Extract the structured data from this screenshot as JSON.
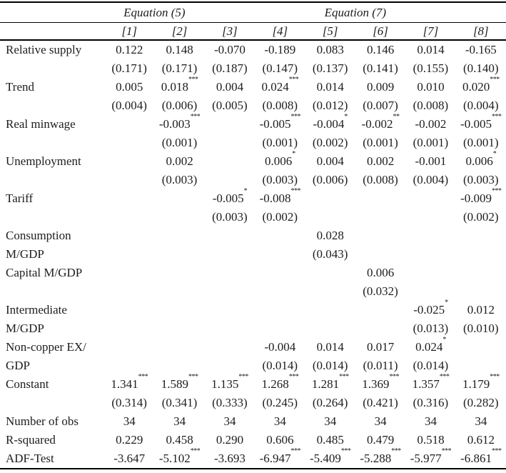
{
  "colors": {
    "text": "#1d1d1d",
    "rule": "#000000",
    "background": "#ffffff"
  },
  "table": {
    "header": {
      "groups": [
        {
          "label": "Equation (5)"
        },
        {
          "label": "Equation (7)"
        }
      ],
      "columns": [
        "[1]",
        "[2]",
        "[3]",
        "[4]",
        "[5]",
        "[6]",
        "[7]",
        "[8]"
      ]
    },
    "rows": [
      {
        "label": [
          "Relative supply",
          ""
        ],
        "coef": [
          "0.122",
          "0.148",
          "-0.070",
          "-0.189",
          "0.083",
          "0.146",
          "0.014",
          "-0.165"
        ],
        "stars": [
          "",
          "",
          "",
          "",
          "",
          "",
          "",
          ""
        ],
        "se": [
          "(0.171)",
          "(0.171)",
          "(0.187)",
          "(0.147)",
          "(0.137)",
          "(0.141)",
          "(0.155)",
          "(0.140)"
        ]
      },
      {
        "label": [
          "Trend",
          ""
        ],
        "coef": [
          "0.005",
          "0.018",
          "0.004",
          "0.024",
          "0.014",
          "0.009",
          "0.010",
          "0.020"
        ],
        "stars": [
          "",
          "***",
          "",
          "***",
          "",
          "",
          "",
          "***"
        ],
        "se": [
          "(0.004)",
          "(0.006)",
          "(0.005)",
          "(0.008)",
          "(0.012)",
          "(0.007)",
          "(0.008)",
          "(0.004)"
        ]
      },
      {
        "label": [
          "Real minwage",
          ""
        ],
        "coef": [
          "",
          "-0.003",
          "",
          "-0.005",
          "-0.004",
          "-0.002",
          "-0.002",
          "-0.005"
        ],
        "stars": [
          "",
          "***",
          "",
          "***",
          "*",
          "**",
          "",
          "***"
        ],
        "se": [
          "",
          "(0.001)",
          "",
          "(0.001)",
          "(0.002)",
          "(0.001)",
          "(0.001)",
          "(0.001)"
        ]
      },
      {
        "label": [
          "Unemployment",
          ""
        ],
        "coef": [
          "",
          "0.002",
          "",
          "0.006",
          "0.004",
          "0.002",
          "-0.001",
          "0.006"
        ],
        "stars": [
          "",
          "",
          "",
          "*",
          "",
          "",
          "",
          "*"
        ],
        "se": [
          "",
          "(0.003)",
          "",
          "(0.003)",
          "(0.006)",
          "(0.008)",
          "(0.004)",
          "(0.003)"
        ]
      },
      {
        "label": [
          "Tariff",
          ""
        ],
        "coef": [
          "",
          "",
          "-0.005",
          "-0.008",
          "",
          "",
          "",
          "-0.009"
        ],
        "stars": [
          "",
          "",
          "*",
          "***",
          "",
          "",
          "",
          "***"
        ],
        "se": [
          "",
          "",
          "(0.003)",
          "(0.002)",
          "",
          "",
          "",
          "(0.002)"
        ]
      },
      {
        "label": [
          "Consumption",
          "M/GDP"
        ],
        "coef": [
          "",
          "",
          "",
          "",
          "0.028",
          "",
          "",
          ""
        ],
        "stars": [
          "",
          "",
          "",
          "",
          "",
          "",
          "",
          ""
        ],
        "se": [
          "",
          "",
          "",
          "",
          "(0.043)",
          "",
          "",
          ""
        ]
      },
      {
        "label": [
          "Capital M/GDP",
          ""
        ],
        "coef": [
          "",
          "",
          "",
          "",
          "",
          "0.006",
          "",
          ""
        ],
        "stars": [
          "",
          "",
          "",
          "",
          "",
          "",
          "",
          ""
        ],
        "se": [
          "",
          "",
          "",
          "",
          "",
          "(0.032)",
          "",
          ""
        ]
      },
      {
        "label": [
          "Intermediate",
          "M/GDP"
        ],
        "coef": [
          "",
          "",
          "",
          "",
          "",
          "",
          "-0.025",
          "0.012"
        ],
        "stars": [
          "",
          "",
          "",
          "",
          "",
          "",
          "*",
          ""
        ],
        "se": [
          "",
          "",
          "",
          "",
          "",
          "",
          "(0.013)",
          "(0.010)"
        ]
      },
      {
        "label": [
          "Non-copper EX/",
          "GDP"
        ],
        "coef": [
          "",
          "",
          "",
          "-0.004",
          "0.014",
          "0.017",
          "0.024",
          ""
        ],
        "stars": [
          "",
          "",
          "",
          "",
          "",
          "",
          "*",
          ""
        ],
        "se": [
          "",
          "",
          "",
          "(0.014)",
          "(0.014)",
          "(0.011)",
          "(0.014)",
          ""
        ]
      },
      {
        "label": [
          "Constant",
          ""
        ],
        "coef": [
          "1.341",
          "1.589",
          "1.135",
          "1.268",
          "1.281",
          "1.369",
          "1.357",
          "1.179"
        ],
        "stars": [
          "***",
          "***",
          "***",
          "***",
          "***",
          "***",
          "***",
          "***"
        ],
        "se": [
          "(0.314)",
          "(0.341)",
          "(0.333)",
          "(0.245)",
          "(0.264)",
          "(0.421)",
          "(0.316)",
          "(0.282)"
        ]
      }
    ],
    "stats": [
      {
        "label": "Number of obs",
        "values": [
          "34",
          "34",
          "34",
          "34",
          "34",
          "34",
          "34",
          "34"
        ],
        "stars": [
          "",
          "",
          "",
          "",
          "",
          "",
          "",
          ""
        ]
      },
      {
        "label": "R-squared",
        "values": [
          "0.229",
          "0.458",
          "0.290",
          "0.606",
          "0.485",
          "0.479",
          "0.518",
          "0.612"
        ],
        "stars": [
          "",
          "",
          "",
          "",
          "",
          "",
          "",
          ""
        ]
      },
      {
        "label": "ADF-Test",
        "values": [
          "-3.647",
          "-5.102",
          "-3.693",
          "-6.947",
          "-5.409",
          "-5.288",
          "-5.977",
          "-6.861"
        ],
        "stars": [
          "",
          "***",
          "",
          "***",
          "***",
          "***",
          "***",
          "***"
        ]
      }
    ]
  }
}
